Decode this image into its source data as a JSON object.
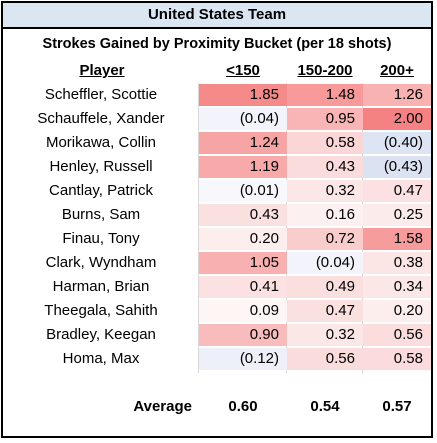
{
  "title": "United States Team",
  "subtitle": "Strokes Gained by Proximity Bucket (per 18 shots)",
  "columns": [
    "Player",
    "<150",
    "150-200",
    "200+"
  ],
  "rows": [
    {
      "player": "Scheffler, Scottie",
      "v1": "1.85",
      "v2": "1.48",
      "v3": "1.26",
      "c1": "#f58a8a",
      "c2": "#f89a9a",
      "c3": "#f9b2b2"
    },
    {
      "player": "Schauffele, Xander",
      "v1": "(0.04)",
      "v2": "0.95",
      "v3": "2.00",
      "c1": "#f2f3fb",
      "c2": "#f9b5b5",
      "c3": "#f58282"
    },
    {
      "player": "Morikawa, Collin",
      "v1": "1.24",
      "v2": "0.58",
      "v3": "(0.40)",
      "c1": "#f7a4a4",
      "c2": "#fad6d6",
      "c3": "#dde4f3"
    },
    {
      "player": "Henley, Russell",
      "v1": "1.19",
      "v2": "0.43",
      "v3": "(0.43)",
      "c1": "#f8a9a9",
      "c2": "#fbdcdc",
      "c3": "#dbe2f2"
    },
    {
      "player": "Cantlay, Patrick",
      "v1": "(0.01)",
      "v2": "0.32",
      "v3": "0.47",
      "c1": "#f7f8fc",
      "c2": "#fce7e7",
      "c3": "#fbe1e1"
    },
    {
      "player": "Burns, Sam",
      "v1": "0.43",
      "v2": "0.16",
      "v3": "0.25",
      "c1": "#fbe0e0",
      "c2": "#fdf0f0",
      "c3": "#fcebeb"
    },
    {
      "player": "Finau, Tony",
      "v1": "0.20",
      "v2": "0.72",
      "v3": "1.58",
      "c1": "#fdeeee",
      "c2": "#facdcd",
      "c3": "#f79c9c"
    },
    {
      "player": "Clark, Wyndham",
      "v1": "1.05",
      "v2": "(0.04)",
      "v3": "0.38",
      "c1": "#f8b0b0",
      "c2": "#f2f3fb",
      "c3": "#fce5e5"
    },
    {
      "player": "Harman, Brian",
      "v1": "0.41",
      "v2": "0.49",
      "v3": "0.34",
      "c1": "#fbe1e1",
      "c2": "#fbdfdf",
      "c3": "#fce7e7"
    },
    {
      "player": "Theegala, Sahith",
      "v1": "0.09",
      "v2": "0.47",
      "v3": "0.20",
      "c1": "#fef5f5",
      "c2": "#fbe0e0",
      "c3": "#fdeeee"
    },
    {
      "player": "Bradley, Keegan",
      "v1": "0.90",
      "v2": "0.32",
      "v3": "0.56",
      "c1": "#f9bcbc",
      "c2": "#fce7e7",
      "c3": "#fbdddd"
    },
    {
      "player": "Homa, Max",
      "v1": "(0.12)",
      "v2": "0.56",
      "v3": "0.58",
      "c1": "#edf0f9",
      "c2": "#fbdcdc",
      "c3": "#fbdbdb"
    }
  ],
  "average": {
    "label": "Average",
    "v1": "0.60",
    "v2": "0.54",
    "v3": "0.57"
  },
  "colors": {
    "header_fill": "#dbe6f3",
    "positive_max": "#f58282",
    "negative": "#dbe2f2"
  }
}
